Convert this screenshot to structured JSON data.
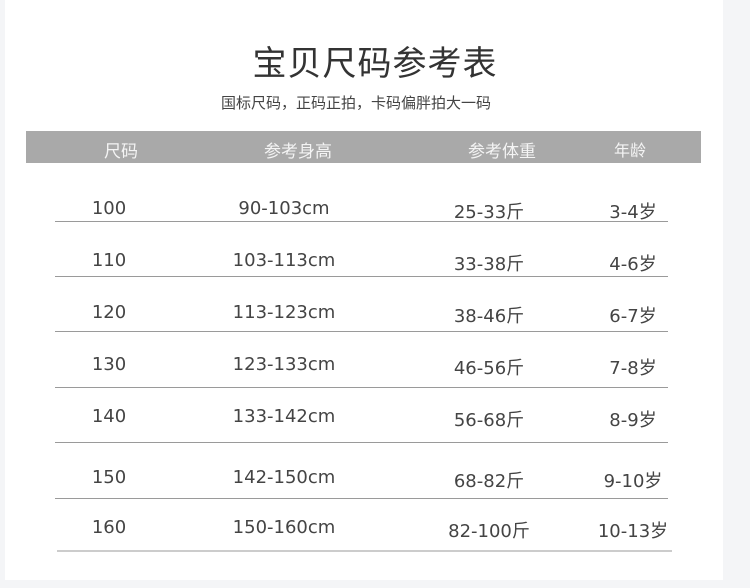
{
  "title": "宝贝尺码参考表",
  "subtitle": "国标尺码，正码正拍，卡码偏胖拍大一码",
  "columns": [
    "尺码",
    "参考身高",
    "参考体重",
    "年龄"
  ],
  "rows": [
    [
      "100",
      "90-103cm",
      "25-33斤",
      "3-4岁"
    ],
    [
      "110",
      "103-113cm",
      "33-38斤",
      "4-6岁"
    ],
    [
      "120",
      "113-123cm",
      "38-46斤",
      "6-7岁"
    ],
    [
      "130",
      "123-133cm",
      "46-56斤",
      "7-8岁"
    ],
    [
      "140",
      "133-142cm",
      "56-68斤",
      "8-9岁"
    ],
    [
      "150",
      "142-150cm",
      "68-82斤",
      "9-10岁"
    ],
    [
      "160",
      "150-160cm",
      "82-100斤",
      "10-13岁"
    ]
  ],
  "colors": {
    "header_bg": "#a9a9a9",
    "text": "#444444"
  }
}
